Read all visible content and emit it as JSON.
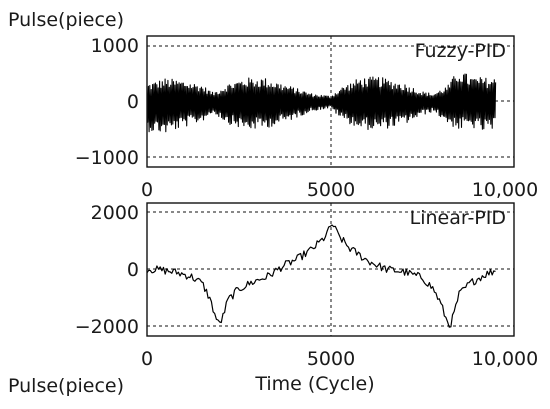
{
  "chart_data": [
    {
      "type": "line",
      "ylabel": "Pulse(piece)",
      "xlabel": "",
      "annotation": "Fuzzy-PID",
      "xlim": [
        0,
        10000
      ],
      "ylim": [
        -1100,
        1100
      ],
      "xticks": [
        "0",
        "5000",
        "10,000"
      ],
      "yticks": [
        "1000",
        "0",
        "−1000"
      ],
      "ytick_values": [
        1000,
        0,
        -1000
      ],
      "grid": "dashed at 0 and ±1000 (y), 5000 (x)",
      "series": [
        {
          "envelope": {
            "x": [
              0,
              500,
              1000,
              1500,
              1800,
              2200,
              2700,
              3200,
              3800,
              4500,
              5000,
              5300,
              5800,
              6300,
              7000,
              7500,
              7800,
              8200,
              8500,
              8800,
              9200,
              9500
            ],
            "y_upper": [
              320,
              420,
              380,
              300,
              160,
              320,
              430,
              430,
              300,
              140,
              100,
              260,
              430,
              450,
              330,
              180,
              140,
              290,
              600,
              450,
              430,
              420
            ],
            "y_lower": [
              -540,
              -580,
              -470,
              -360,
              -200,
              -400,
              -520,
              -490,
              -370,
              -170,
              -120,
              -320,
              -500,
              -520,
              -420,
              -250,
              -180,
              -400,
              -520,
              -460,
              -560,
              -520
            ]
          }
        }
      ]
    },
    {
      "type": "line",
      "ylabel": "",
      "xlabel": "Time  (Cycle)",
      "annotation": "Linear-PID",
      "xlim": [
        0,
        10000
      ],
      "ylim": [
        -2200,
        2200
      ],
      "xticks": [
        "0",
        "5000",
        "10,000"
      ],
      "yticks": [
        "2000",
        "0",
        "−2000"
      ],
      "ytick_values": [
        2000,
        0,
        -2000
      ],
      "grid": "dashed at 0 and ±2000 (y), 5000 (x)",
      "series": [
        {
          "x": [
            0,
            400,
            800,
            1200,
            1500,
            1700,
            1850,
            1950,
            2050,
            2200,
            2500,
            2900,
            3300,
            3700,
            4100,
            4500,
            4800,
            4950,
            5050,
            5200,
            5500,
            6000,
            6500,
            7000,
            7500,
            7800,
            8000,
            8150,
            8250,
            8350,
            8500,
            8800,
            9200,
            9500
          ],
          "y": [
            0,
            -40,
            -120,
            -260,
            -500,
            -1000,
            -1600,
            -1950,
            -1750,
            -1100,
            -700,
            -450,
            -250,
            100,
            350,
            700,
            1050,
            1350,
            1600,
            1200,
            750,
            300,
            0,
            -100,
            -300,
            -700,
            -1200,
            -1750,
            -2000,
            -1650,
            -900,
            -500,
            -200,
            -50
          ]
        }
      ]
    }
  ],
  "bottom_left_label": "Pulse(piece)"
}
